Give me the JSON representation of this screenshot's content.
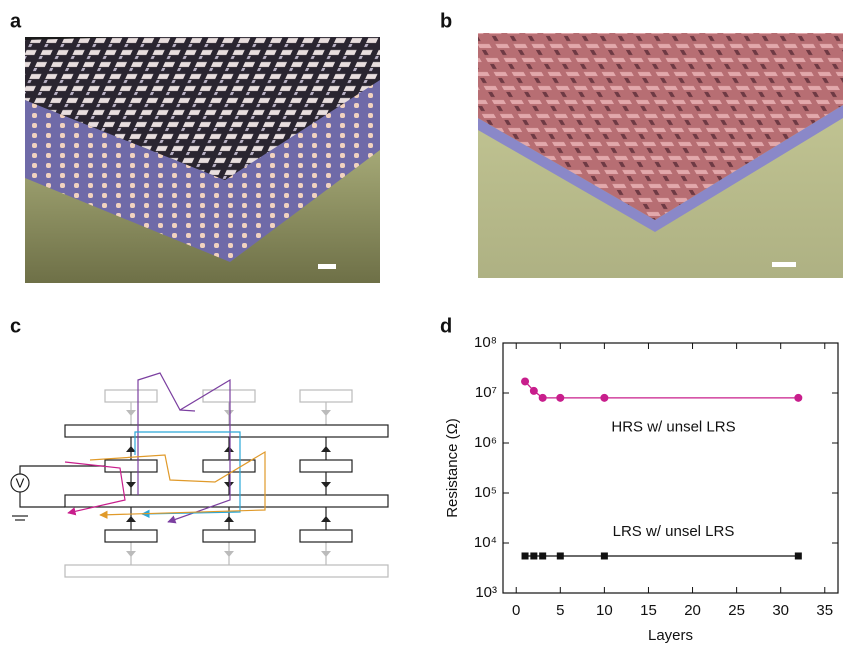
{
  "panels": {
    "a": "a",
    "b": "b",
    "c": "c",
    "d": "d"
  },
  "circuit": {
    "source": "V"
  },
  "chart_data": {
    "type": "line",
    "x_label": "Layers",
    "y_label": "Resistance (Ω)",
    "x": [
      1,
      2,
      3,
      5,
      10,
      32
    ],
    "series": [
      {
        "name": "HRS w/ unsel LRS",
        "color": "#c81e8c",
        "marker": "circle",
        "values": [
          17000000,
          11000000,
          8000000,
          8000000,
          8000000,
          8000000
        ]
      },
      {
        "name": "LRS w/ unsel LRS",
        "color": "#111111",
        "marker": "square",
        "values": [
          5500,
          5500,
          5500,
          5500,
          5500,
          5500
        ]
      }
    ],
    "xlim": [
      -1.5,
      36.5
    ],
    "xticks": [
      0,
      5,
      10,
      15,
      20,
      25,
      30,
      35
    ],
    "ylim": [
      1000,
      100000000
    ],
    "ylog": true,
    "yticks": [
      {
        "value": 1000,
        "label": "10³"
      },
      {
        "value": 10000,
        "label": "10⁴"
      },
      {
        "value": 100000,
        "label": "10⁵"
      },
      {
        "value": 1000000,
        "label": "10⁶"
      },
      {
        "value": 10000000,
        "label": "10⁷"
      },
      {
        "value": 100000000,
        "label": "10⁸"
      }
    ]
  }
}
